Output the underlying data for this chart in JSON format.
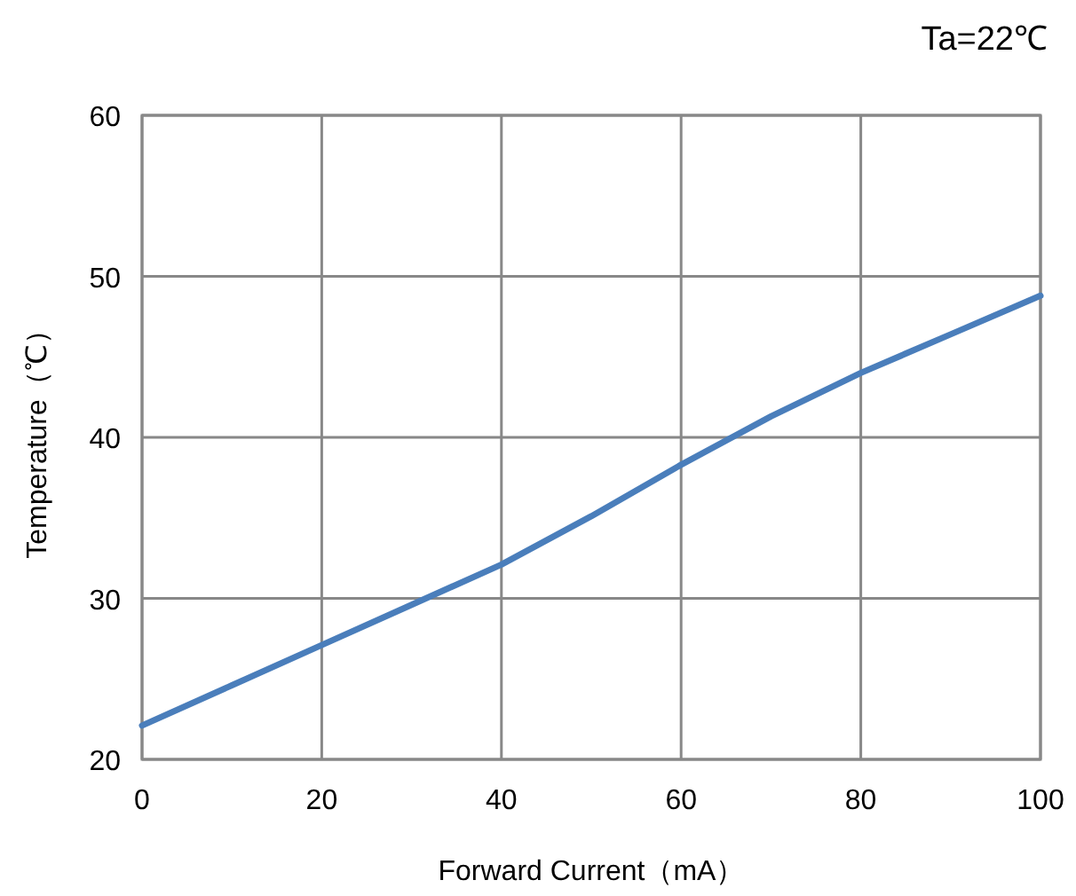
{
  "chart_data": {
    "type": "line",
    "annotations": [
      "Ta=22℃"
    ],
    "xlabel": "Forward Current（mA）",
    "ylabel": "Temperature（℃）",
    "x": [
      0,
      10,
      20,
      30,
      40,
      50,
      60,
      70,
      80,
      90,
      100
    ],
    "series": [
      {
        "color": "#4a7ebb",
        "values": [
          22.1,
          24.6,
          27.1,
          29.6,
          32.1,
          35.1,
          38.3,
          41.3,
          44.0,
          46.4,
          48.8
        ]
      }
    ],
    "xlim": [
      0,
      100
    ],
    "xticks": [
      0,
      20,
      40,
      60,
      80,
      100
    ],
    "ylim": [
      20,
      60
    ],
    "yticks": [
      20,
      30,
      40,
      50,
      60
    ],
    "grid": true,
    "marker": "none",
    "line_style": "solid"
  }
}
